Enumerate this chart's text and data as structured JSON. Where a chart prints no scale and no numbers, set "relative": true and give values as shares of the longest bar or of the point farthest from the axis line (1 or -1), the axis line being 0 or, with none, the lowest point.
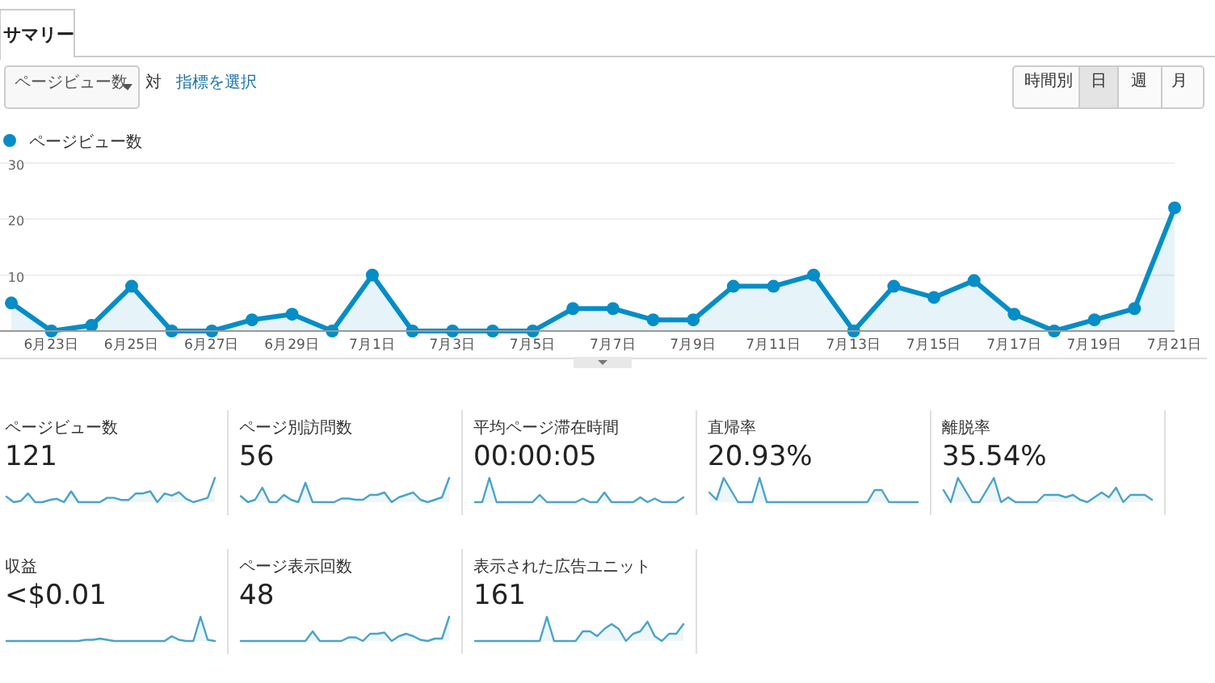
{
  "chart_data": [
    {
      "type": "area",
      "title": "サマリー",
      "annotations": [
        "ページビュー数",
        "対",
        "指標を選択",
        "時間別",
        "日",
        "週",
        "月"
      ],
      "legend": "top left",
      "marker": "circle",
      "grid": "y",
      "categories": [
        null,
        "6月23日",
        null,
        "6月25日",
        null,
        "6月27日",
        null,
        "6月29日",
        null,
        "7月1日",
        null,
        "7月3日",
        null,
        "7月5日",
        null,
        "7月7日",
        null,
        "7月9日",
        null,
        "7月11日",
        null,
        "7月13日",
        null,
        "7月15日",
        null,
        "7月17日",
        null,
        "7月19日",
        null,
        "7月21日"
      ],
      "ylim": [
        0,
        30
      ],
      "yticks": [
        {
          "value": 0,
          "label": null
        },
        10,
        20,
        30
      ],
      "series": [
        {
          "name": "ページビュー数",
          "color": "#058dc7",
          "values": [
            5,
            0,
            1,
            8,
            0,
            0,
            2,
            3,
            0,
            10,
            0,
            0,
            0,
            0,
            4,
            4,
            2,
            2,
            8,
            8,
            10,
            0,
            8,
            6,
            9,
            3,
            0,
            2,
            4,
            22
          ]
        }
      ]
    },
    {
      "type": "area",
      "title": "ページビュー数",
      "subtitle": "121",
      "relative": true,
      "categories": [
        null,
        null,
        null,
        null,
        null,
        null,
        null,
        null,
        null,
        null,
        null,
        null,
        null,
        null,
        null,
        null,
        null,
        null,
        null,
        null,
        null,
        null,
        null,
        null,
        null,
        null,
        null,
        null,
        null,
        null
      ],
      "color": "#4aa3c8",
      "values": [
        0.23,
        0,
        0.05,
        0.36,
        0,
        0,
        0.09,
        0.14,
        0,
        0.45,
        0,
        0,
        0,
        0,
        0.18,
        0.18,
        0.09,
        0.09,
        0.36,
        0.36,
        0.45,
        0,
        0.36,
        0.27,
        0.41,
        0.14,
        0,
        0.09,
        0.18,
        1
      ]
    },
    {
      "type": "area",
      "title": "ページ別訪問数",
      "subtitle": "56",
      "relative": true,
      "categories": [
        null,
        null,
        null,
        null,
        null,
        null,
        null,
        null,
        null,
        null,
        null,
        null,
        null,
        null,
        null,
        null,
        null,
        null,
        null,
        null,
        null,
        null,
        null,
        null,
        null,
        null,
        null,
        null,
        null,
        null
      ],
      "color": "#4aa3c8",
      "values": [
        0.25,
        0,
        0.1,
        0.6,
        0,
        0,
        0.3,
        0.1,
        0,
        0.8,
        0,
        0,
        0,
        0,
        0.15,
        0.15,
        0.1,
        0.1,
        0.3,
        0.3,
        0.4,
        0,
        0.2,
        0.3,
        0.4,
        0.1,
        0,
        0.1,
        0.2,
        1
      ]
    },
    {
      "type": "area",
      "title": "平均ページ滞在時間",
      "subtitle": "00:00:05",
      "relative": true,
      "categories": [
        null,
        null,
        null,
        null,
        null,
        null,
        null,
        null,
        null,
        null,
        null,
        null,
        null,
        null,
        null,
        null,
        null,
        null,
        null,
        null,
        null,
        null,
        null,
        null,
        null,
        null,
        null,
        null,
        null,
        null
      ],
      "color": "#4aa3c8",
      "values": [
        0,
        0,
        1,
        0,
        0,
        0,
        0,
        0,
        0,
        0.3,
        0,
        0,
        0,
        0,
        0,
        0.15,
        0,
        0,
        0.4,
        0,
        0,
        0,
        0,
        0.2,
        0,
        0.15,
        0,
        0,
        0,
        0.2
      ]
    },
    {
      "type": "area",
      "title": "直帰率",
      "subtitle": "20.93%",
      "relative": true,
      "categories": [
        null,
        null,
        null,
        null,
        null,
        null,
        null,
        null,
        null,
        null,
        null,
        null,
        null,
        null,
        null,
        null,
        null,
        null,
        null,
        null,
        null,
        null,
        null,
        null,
        null,
        null,
        null,
        null,
        null,
        null
      ],
      "color": "#4aa3c8",
      "values": [
        0.4,
        0.1,
        1,
        0.5,
        0,
        0,
        0,
        1,
        0,
        0,
        0,
        0,
        0,
        0,
        0,
        0,
        0,
        0,
        0,
        0,
        0,
        0,
        0,
        0.5,
        0.5,
        0,
        0,
        0,
        0,
        0
      ]
    },
    {
      "type": "area",
      "title": "離脱率",
      "subtitle": "35.54%",
      "relative": true,
      "categories": [
        null,
        null,
        null,
        null,
        null,
        null,
        null,
        null,
        null,
        null,
        null,
        null,
        null,
        null,
        null,
        null,
        null,
        null,
        null,
        null,
        null,
        null,
        null,
        null,
        null,
        null,
        null,
        null,
        null,
        null
      ],
      "color": "#4aa3c8",
      "values": [
        0.5,
        0,
        1,
        0.5,
        0,
        0,
        0.5,
        1,
        0,
        0.2,
        0,
        0,
        0,
        0,
        0.3,
        0.3,
        0.3,
        0.2,
        0.3,
        0.1,
        0,
        0.2,
        0.4,
        0.2,
        0.6,
        0,
        0.3,
        0.3,
        0.3,
        0.1
      ]
    },
    {
      "type": "area",
      "title": "収益",
      "subtitle": "<$0.01",
      "relative": true,
      "categories": [
        null,
        null,
        null,
        null,
        null,
        null,
        null,
        null,
        null,
        null,
        null,
        null,
        null,
        null,
        null,
        null,
        null,
        null,
        null,
        null,
        null,
        null,
        null,
        null,
        null,
        null,
        null,
        null,
        null,
        null
      ],
      "color": "#4aa3c8",
      "values": [
        0,
        0,
        0,
        0,
        0,
        0,
        0,
        0,
        0,
        0,
        0,
        0.05,
        0.05,
        0.1,
        0.05,
        0,
        0,
        0,
        0,
        0,
        0,
        0,
        0,
        0.2,
        0.05,
        0,
        0,
        1,
        0.05,
        0
      ]
    },
    {
      "type": "area",
      "title": "ページ表示回数",
      "subtitle": "48",
      "relative": true,
      "categories": [
        null,
        null,
        null,
        null,
        null,
        null,
        null,
        null,
        null,
        null,
        null,
        null,
        null,
        null,
        null,
        null,
        null,
        null,
        null,
        null,
        null,
        null,
        null,
        null,
        null,
        null,
        null,
        null,
        null,
        null
      ],
      "color": "#4aa3c8",
      "values": [
        0,
        0,
        0,
        0,
        0,
        0,
        0,
        0,
        0,
        0,
        0.4,
        0,
        0,
        0,
        0,
        0.15,
        0.15,
        0,
        0.3,
        0.3,
        0.35,
        0,
        0.2,
        0.3,
        0.2,
        0.05,
        0,
        0.1,
        0.1,
        1
      ]
    },
    {
      "type": "area",
      "title": "表示された広告ユニット",
      "subtitle": "161",
      "relative": true,
      "categories": [
        null,
        null,
        null,
        null,
        null,
        null,
        null,
        null,
        null,
        null,
        null,
        null,
        null,
        null,
        null,
        null,
        null,
        null,
        null,
        null,
        null,
        null,
        null,
        null,
        null,
        null,
        null,
        null,
        null,
        null
      ],
      "color": "#4aa3c8",
      "values": [
        0,
        0,
        0,
        0,
        0,
        0,
        0,
        0,
        0,
        0,
        1,
        0,
        0,
        0,
        0,
        0.4,
        0.4,
        0.2,
        0.5,
        0.7,
        0.5,
        0,
        0.3,
        0.4,
        0.8,
        0.2,
        0,
        0.3,
        0.3,
        0.7
      ]
    }
  ]
}
